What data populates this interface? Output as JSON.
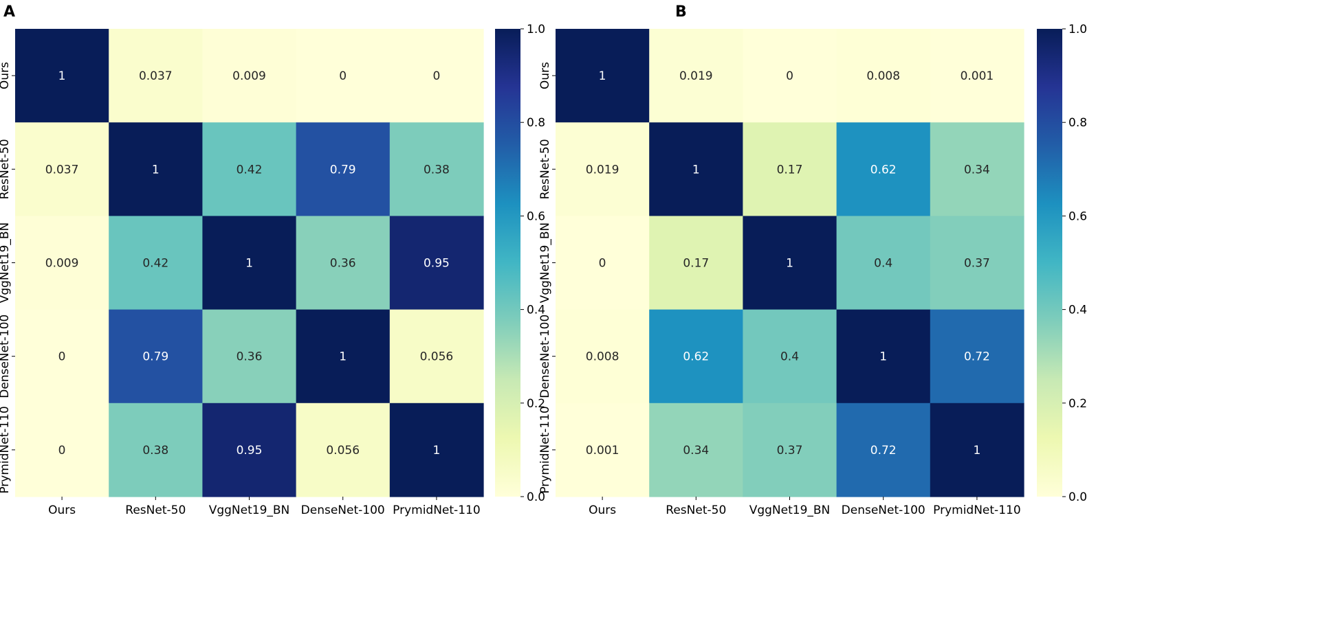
{
  "figure": {
    "colormap": {
      "name": "YlGnBu",
      "stops": [
        "#ffffd9",
        "#edf8b1",
        "#c7e9b4",
        "#7fcdbb",
        "#41b6c4",
        "#1d91c0",
        "#225ea8",
        "#253494",
        "#081d58"
      ]
    }
  },
  "chart_data": [
    {
      "type": "heatmap",
      "panel_label": "A",
      "x_categories": [
        "Ours",
        "ResNet-50",
        "VggNet19_BN",
        "DenseNet-100",
        "PrymidNet-110"
      ],
      "y_categories": [
        "Ours",
        "ResNet-50",
        "VggNet19_BN",
        "DenseNet-100",
        "PrymidNet-110"
      ],
      "values": [
        [
          1,
          0.037,
          0.009,
          0,
          0
        ],
        [
          0.037,
          1,
          0.42,
          0.79,
          0.38
        ],
        [
          0.009,
          0.42,
          1,
          0.36,
          0.95
        ],
        [
          0,
          0.79,
          0.36,
          1,
          0.056
        ],
        [
          0,
          0.38,
          0.95,
          0.056,
          1
        ]
      ],
      "labels": [
        [
          "1",
          "0.037",
          "0.009",
          "0",
          "0"
        ],
        [
          "0.037",
          "1",
          "0.42",
          "0.79",
          "0.38"
        ],
        [
          "0.009",
          "0.42",
          "1",
          "0.36",
          "0.95"
        ],
        [
          "0",
          "0.79",
          "0.36",
          "1",
          "0.056"
        ],
        [
          "0",
          "0.38",
          "0.95",
          "0.056",
          "1"
        ]
      ],
      "colorbar": {
        "vmin": 0.0,
        "vmax": 1.0,
        "ticks": [
          "0.0",
          "0.2",
          "0.4",
          "0.6",
          "0.8",
          "1.0"
        ]
      }
    },
    {
      "type": "heatmap",
      "panel_label": "B",
      "x_categories": [
        "Ours",
        "ResNet-50",
        "VggNet19_BN",
        "DenseNet-100",
        "PrymidNet-110"
      ],
      "y_categories": [
        "Ours",
        "ResNet-50",
        "VggNet19_BN",
        "DenseNet-100",
        "PrymidNet-110"
      ],
      "values": [
        [
          1,
          0.019,
          0,
          0.008,
          0.001
        ],
        [
          0.019,
          1,
          0.17,
          0.62,
          0.34
        ],
        [
          0,
          0.17,
          1,
          0.4,
          0.37
        ],
        [
          0.008,
          0.62,
          0.4,
          1,
          0.72
        ],
        [
          0.001,
          0.34,
          0.37,
          0.72,
          1
        ]
      ],
      "labels": [
        [
          "1",
          "0.019",
          "0",
          "0.008",
          "0.001"
        ],
        [
          "0.019",
          "1",
          "0.17",
          "0.62",
          "0.34"
        ],
        [
          "0",
          "0.17",
          "1",
          "0.4",
          "0.37"
        ],
        [
          "0.008",
          "0.62",
          "0.4",
          "1",
          "0.72"
        ],
        [
          "0.001",
          "0.34",
          "0.37",
          "0.72",
          "1"
        ]
      ],
      "colorbar": {
        "vmin": 0.0,
        "vmax": 1.0,
        "ticks": [
          "0.0",
          "0.2",
          "0.4",
          "0.6",
          "0.8",
          "1.0"
        ]
      }
    }
  ]
}
